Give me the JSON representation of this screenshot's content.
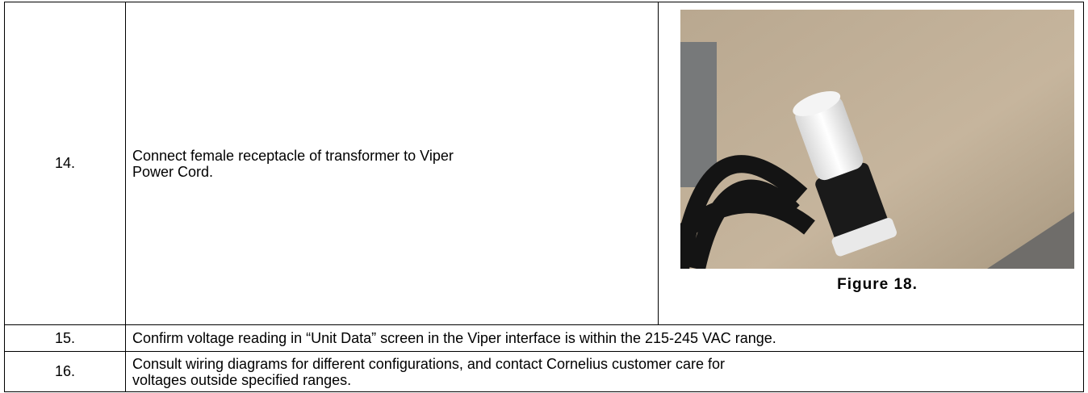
{
  "table": {
    "rows": [
      {
        "step": "14.",
        "text": "Connect female receptacle of transformer to Viper Power Cord.",
        "caption": "Figure 18."
      },
      {
        "step": "15.",
        "text": "Confirm voltage reading in “Unit Data” screen in the Viper interface is within the 215-245 VAC range."
      },
      {
        "step": "16.",
        "text": "Consult wiring diagrams for different configurations, and contact Cornelius customer care for voltages outside specified ranges."
      }
    ]
  }
}
